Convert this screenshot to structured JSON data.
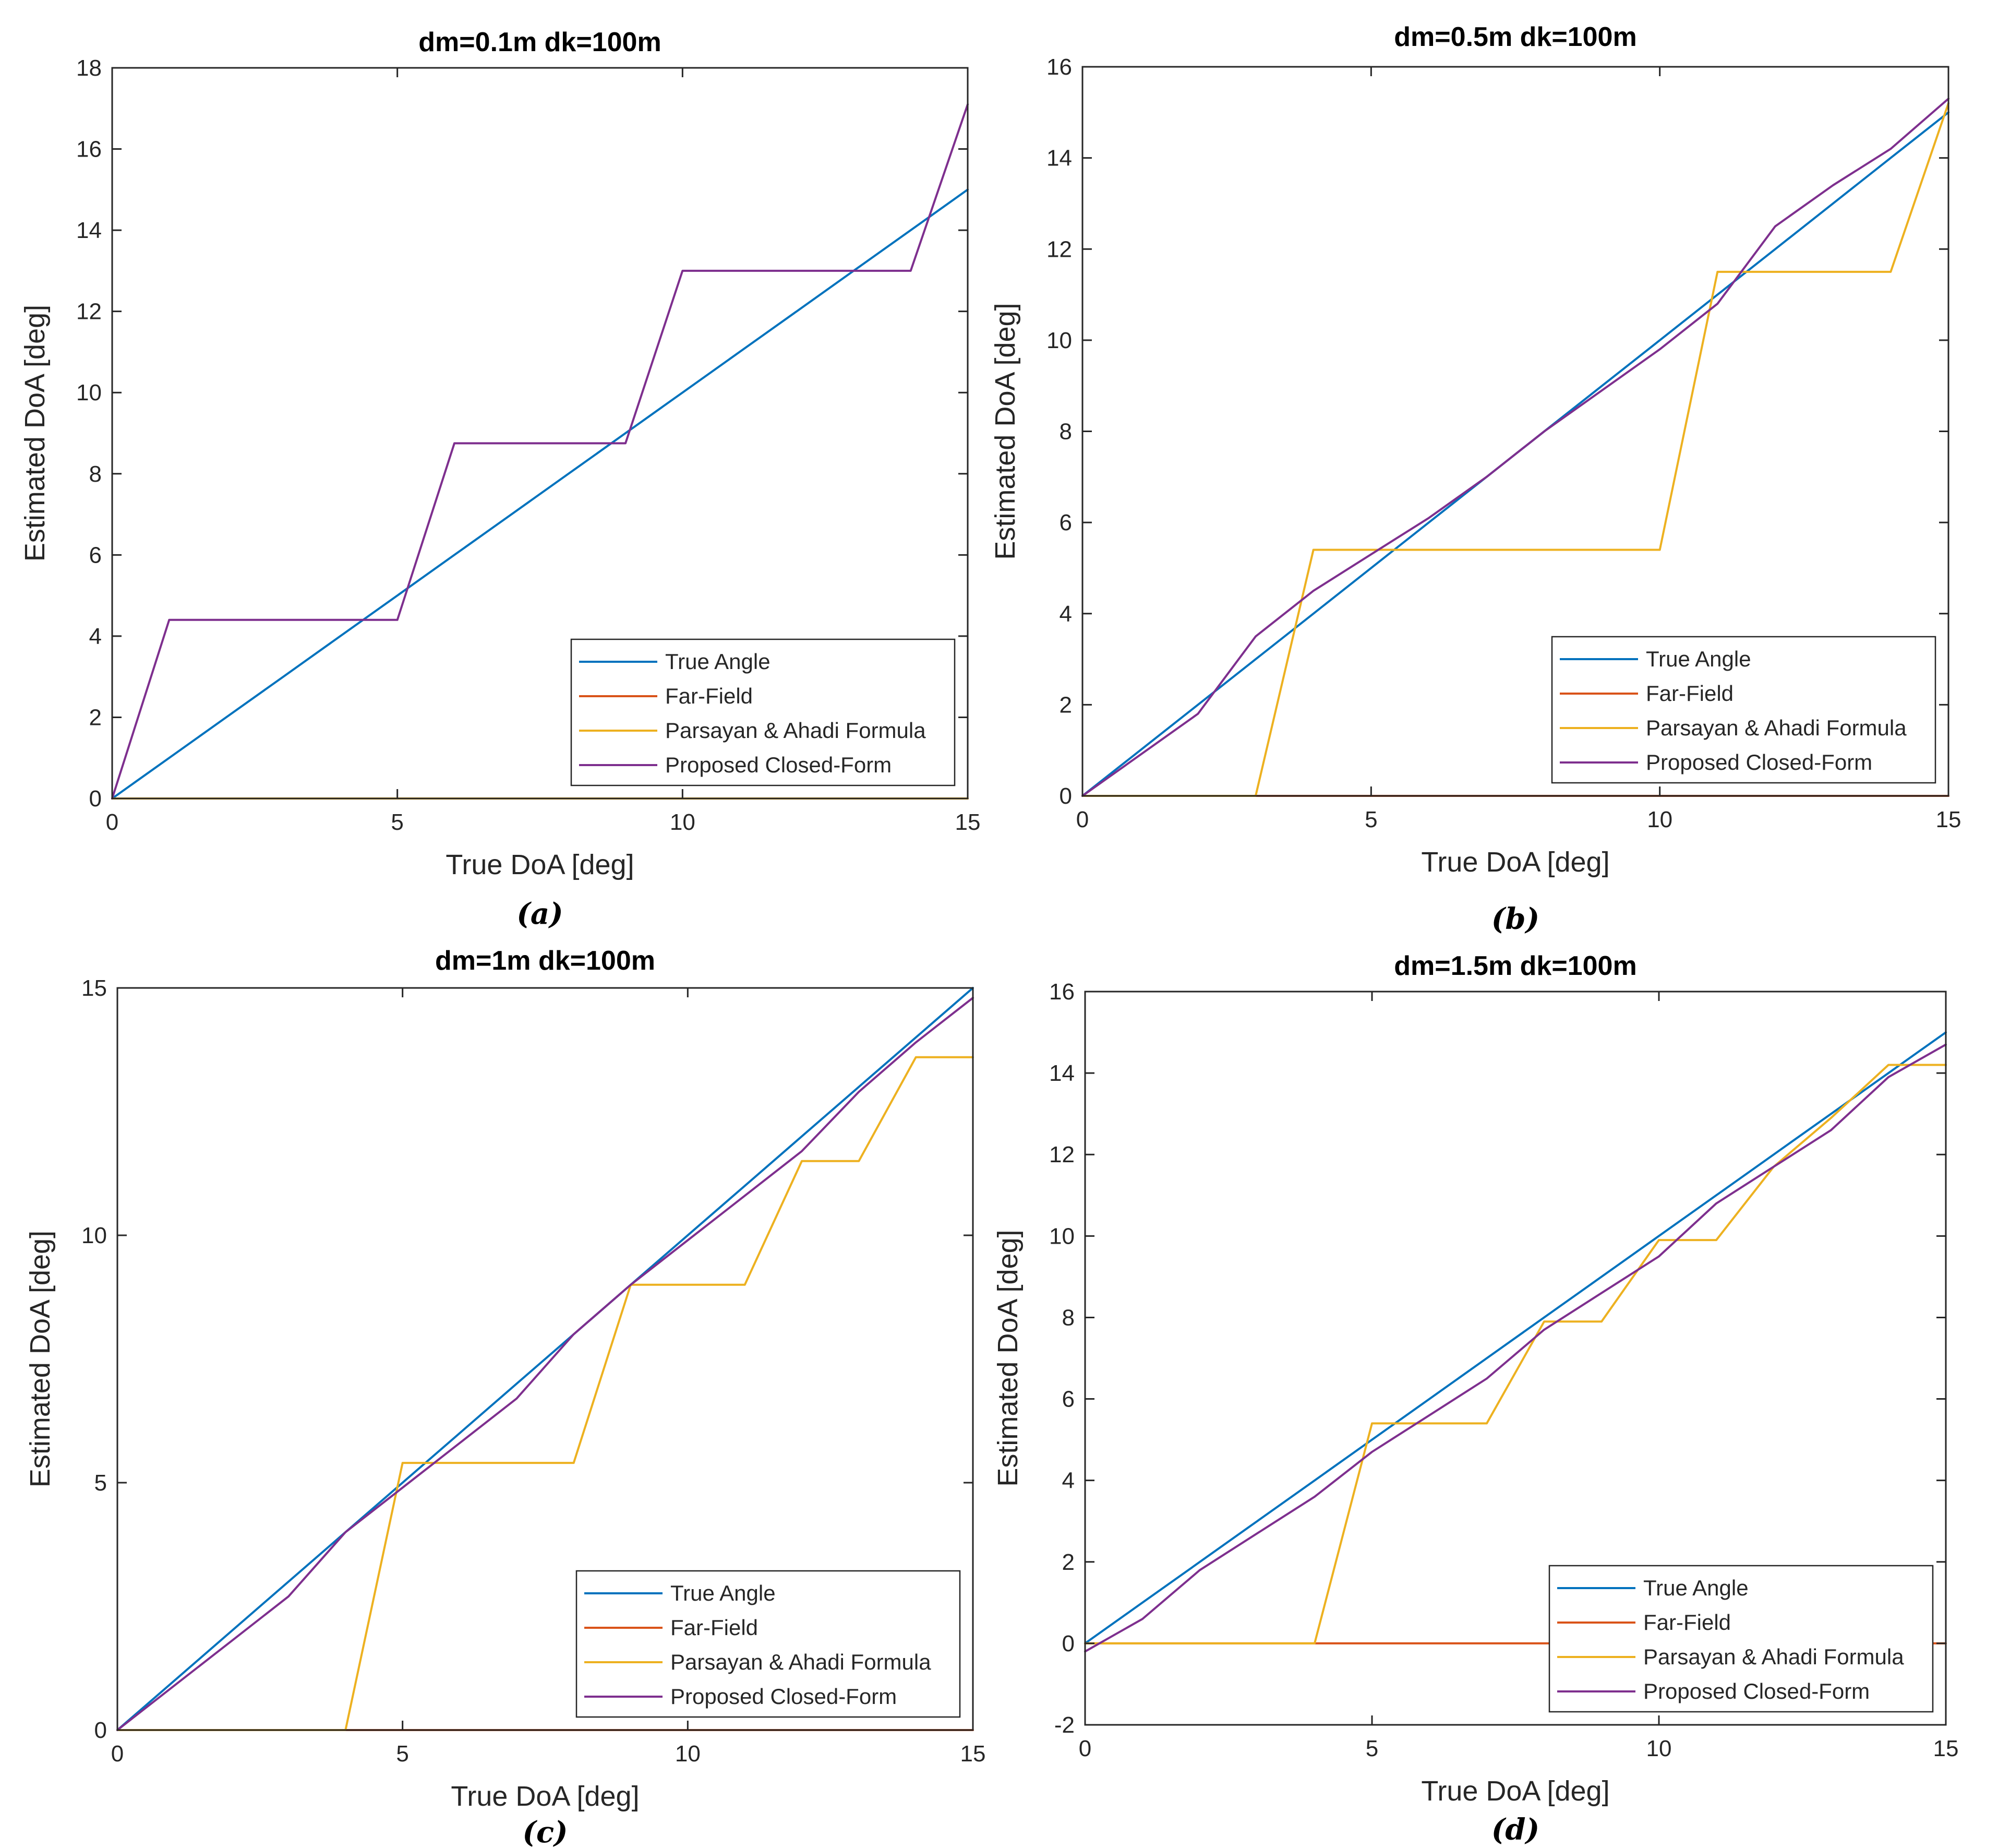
{
  "colors": {
    "true_angle": "#0072BD",
    "far_field": "#D95319",
    "parsayan": "#EDB120",
    "proposed": "#7E2F8E"
  },
  "legend_labels": [
    "True Angle",
    "Far-Field",
    "Parsayan & Ahadi Formula",
    "Proposed Closed-Form"
  ],
  "chart_data": [
    {
      "type": "line",
      "caption": "(a)",
      "title": "dm=0.1m   dk=100m",
      "xlabel": "True DoA [deg]",
      "ylabel": "Estimated DoA [deg]",
      "xlim": [
        0,
        15
      ],
      "ylim": [
        0,
        18
      ],
      "xticks": [
        0,
        5,
        10,
        15
      ],
      "yticks": [
        0,
        2,
        4,
        6,
        8,
        10,
        12,
        14,
        16,
        18
      ],
      "legend_position": "bottom-right",
      "x": [
        0,
        1,
        2,
        3,
        4,
        5,
        6,
        7,
        8,
        9,
        10,
        11,
        12,
        13,
        14,
        15
      ],
      "series": [
        {
          "name": "True Angle",
          "values": [
            0,
            1,
            2,
            3,
            4,
            5,
            6,
            7,
            8,
            9,
            10,
            11,
            12,
            13,
            14,
            15
          ]
        },
        {
          "name": "Far-Field",
          "values": [
            0,
            0,
            0,
            0,
            0,
            0,
            0,
            0,
            0,
            0,
            0,
            0,
            0,
            0,
            0,
            0
          ]
        },
        {
          "name": "Parsayan & Ahadi Formula",
          "values": [
            0,
            0,
            0,
            0,
            0,
            0,
            0,
            0,
            0,
            0,
            0,
            0,
            0,
            0,
            0,
            0
          ]
        },
        {
          "name": "Proposed Closed-Form",
          "values": [
            0,
            4.4,
            4.4,
            4.4,
            4.4,
            4.4,
            8.75,
            8.75,
            8.75,
            8.75,
            13,
            13,
            13,
            13,
            13,
            17.1
          ]
        }
      ]
    },
    {
      "type": "line",
      "caption": "(b)",
      "title": "dm=0.5m   dk=100m",
      "xlabel": "True DoA [deg]",
      "ylabel": "Estimated DoA [deg]",
      "xlim": [
        0,
        15
      ],
      "ylim": [
        0,
        16
      ],
      "xticks": [
        0,
        5,
        10,
        15
      ],
      "yticks": [
        0,
        2,
        4,
        6,
        8,
        10,
        12,
        14,
        16
      ],
      "legend_position": "bottom-right",
      "x": [
        0,
        1,
        2,
        3,
        4,
        5,
        6,
        7,
        8,
        9,
        10,
        11,
        12,
        13,
        14,
        15
      ],
      "series": [
        {
          "name": "True Angle",
          "values": [
            0,
            1,
            2,
            3,
            4,
            5,
            6,
            7,
            8,
            9,
            10,
            11,
            12,
            13,
            14,
            15
          ]
        },
        {
          "name": "Far-Field",
          "values": [
            0,
            0,
            0,
            0,
            0,
            0,
            0,
            0,
            0,
            0,
            0,
            0,
            0,
            0,
            0,
            0
          ]
        },
        {
          "name": "Parsayan & Ahadi Formula",
          "values": [
            0,
            0,
            0,
            0,
            5.4,
            5.4,
            5.4,
            5.4,
            5.4,
            5.4,
            5.4,
            11.5,
            11.5,
            11.5,
            11.5,
            15.2
          ]
        },
        {
          "name": "Proposed Closed-Form",
          "values": [
            0,
            0.9,
            1.8,
            3.5,
            4.5,
            5.3,
            6.1,
            7.0,
            8.0,
            8.9,
            9.8,
            10.8,
            12.5,
            13.4,
            14.2,
            15.3
          ]
        }
      ]
    },
    {
      "type": "line",
      "caption": "(c)",
      "title": "dm=1m   dk=100m",
      "xlabel": "True DoA [deg]",
      "ylabel": "Estimated DoA [deg]",
      "xlim": [
        0,
        15
      ],
      "ylim": [
        0,
        15
      ],
      "xticks": [
        0,
        5,
        10,
        15
      ],
      "yticks": [
        0,
        5,
        10,
        15
      ],
      "legend_position": "bottom-right",
      "x": [
        0,
        1,
        2,
        3,
        4,
        5,
        6,
        7,
        8,
        9,
        10,
        11,
        12,
        13,
        14,
        15
      ],
      "series": [
        {
          "name": "True Angle",
          "values": [
            0,
            1,
            2,
            3,
            4,
            5,
            6,
            7,
            8,
            9,
            10,
            11,
            12,
            13,
            14,
            15
          ]
        },
        {
          "name": "Far-Field",
          "values": [
            0,
            0,
            0,
            0,
            0,
            0,
            0,
            0,
            0,
            0,
            0,
            0,
            0,
            0,
            0,
            0
          ]
        },
        {
          "name": "Parsayan & Ahadi Formula",
          "values": [
            0,
            0,
            0,
            0,
            0,
            5.4,
            5.4,
            5.4,
            5.4,
            9.0,
            9.0,
            9.0,
            11.5,
            11.5,
            13.6,
            13.6
          ]
        },
        {
          "name": "Proposed Closed-Form",
          "values": [
            0,
            0.9,
            1.8,
            2.7,
            4.0,
            4.9,
            5.8,
            6.7,
            8.0,
            9.0,
            9.9,
            10.8,
            11.7,
            12.9,
            13.9,
            14.8
          ]
        }
      ]
    },
    {
      "type": "line",
      "caption": "(d)",
      "title": "dm=1.5m   dk=100m",
      "xlabel": "True DoA [deg]",
      "ylabel": "Estimated DoA [deg]",
      "xlim": [
        0,
        15
      ],
      "ylim": [
        -2,
        16
      ],
      "xticks": [
        0,
        5,
        10,
        15
      ],
      "yticks": [
        -2,
        0,
        2,
        4,
        6,
        8,
        10,
        12,
        14,
        16
      ],
      "legend_position": "bottom-right",
      "x": [
        0,
        1,
        2,
        3,
        4,
        5,
        6,
        7,
        8,
        9,
        10,
        11,
        12,
        13,
        14,
        15
      ],
      "series": [
        {
          "name": "True Angle",
          "values": [
            0,
            1,
            2,
            3,
            4,
            5,
            6,
            7,
            8,
            9,
            10,
            11,
            12,
            13,
            14,
            15
          ]
        },
        {
          "name": "Far-Field",
          "values": [
            0,
            0,
            0,
            0,
            0,
            0,
            0,
            0,
            0,
            0,
            0,
            0,
            0,
            0,
            0,
            0
          ]
        },
        {
          "name": "Parsayan & Ahadi Formula",
          "values": [
            0,
            0,
            0,
            0,
            0,
            5.4,
            5.4,
            5.4,
            7.9,
            7.9,
            9.9,
            9.9,
            11.7,
            12.9,
            14.2,
            14.2
          ]
        },
        {
          "name": "Proposed Closed-Form",
          "values": [
            -0.2,
            0.6,
            1.8,
            2.7,
            3.6,
            4.7,
            5.6,
            6.5,
            7.7,
            8.6,
            9.5,
            10.8,
            11.7,
            12.6,
            13.9,
            14.7
          ]
        }
      ]
    }
  ]
}
